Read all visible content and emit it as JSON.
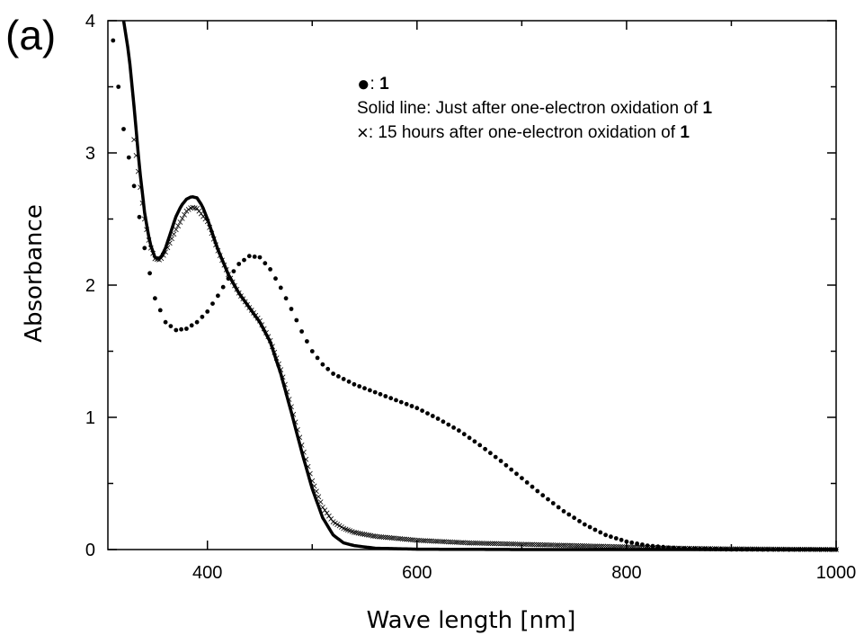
{
  "panel_label": "(a)",
  "chart_data": {
    "type": "line",
    "xlabel": "Wave length [nm]",
    "ylabel": "Absorbance",
    "xlim": [
      305,
      1000
    ],
    "ylim": [
      0,
      4
    ],
    "x_ticks": [
      400,
      600,
      800,
      1000
    ],
    "y_ticks": [
      0,
      1,
      2,
      3,
      4
    ],
    "grid": false,
    "legend": {
      "placement": "top-center",
      "entries": [
        {
          "symbol": "●",
          "sep": ": ",
          "text": "",
          "bold": "1"
        },
        {
          "symbol": "",
          "sep": "",
          "text": "Solid line: Just after one-electron oxidation of ",
          "bold": "1"
        },
        {
          "symbol": "×",
          "sep": ": ",
          "text": "15 hours after one-electron oxidation of ",
          "bold": "1"
        }
      ]
    },
    "series": [
      {
        "key": "compound_1",
        "style": "dots",
        "points": [
          [
            310,
            3.85
          ],
          [
            315,
            3.5
          ],
          [
            320,
            3.18
          ],
          [
            330,
            2.75
          ],
          [
            340,
            2.28
          ],
          [
            350,
            1.9
          ],
          [
            360,
            1.72
          ],
          [
            370,
            1.66
          ],
          [
            380,
            1.67
          ],
          [
            390,
            1.72
          ],
          [
            400,
            1.8
          ],
          [
            410,
            1.92
          ],
          [
            420,
            2.05
          ],
          [
            430,
            2.16
          ],
          [
            440,
            2.22
          ],
          [
            450,
            2.21
          ],
          [
            460,
            2.12
          ],
          [
            470,
            1.98
          ],
          [
            480,
            1.82
          ],
          [
            490,
            1.65
          ],
          [
            500,
            1.5
          ],
          [
            510,
            1.4
          ],
          [
            520,
            1.33
          ],
          [
            530,
            1.29
          ],
          [
            540,
            1.25
          ],
          [
            550,
            1.22
          ],
          [
            560,
            1.19
          ],
          [
            570,
            1.16
          ],
          [
            580,
            1.13
          ],
          [
            590,
            1.1
          ],
          [
            600,
            1.07
          ],
          [
            620,
            0.99
          ],
          [
            640,
            0.9
          ],
          [
            660,
            0.79
          ],
          [
            680,
            0.67
          ],
          [
            700,
            0.54
          ],
          [
            720,
            0.41
          ],
          [
            740,
            0.29
          ],
          [
            760,
            0.19
          ],
          [
            780,
            0.11
          ],
          [
            800,
            0.06
          ],
          [
            820,
            0.03
          ],
          [
            840,
            0.015
          ],
          [
            860,
            0.006
          ],
          [
            880,
            0.003
          ],
          [
            900,
            0.001
          ],
          [
            940,
            0
          ],
          [
            1000,
            0
          ]
        ]
      },
      {
        "key": "just_after_oxidation",
        "style": "solid",
        "points": [
          [
            320,
            4.0
          ],
          [
            325,
            3.75
          ],
          [
            330,
            3.35
          ],
          [
            335,
            2.9
          ],
          [
            340,
            2.55
          ],
          [
            345,
            2.32
          ],
          [
            350,
            2.21
          ],
          [
            355,
            2.2
          ],
          [
            360,
            2.28
          ],
          [
            365,
            2.4
          ],
          [
            370,
            2.52
          ],
          [
            375,
            2.6
          ],
          [
            380,
            2.65
          ],
          [
            385,
            2.67
          ],
          [
            390,
            2.66
          ],
          [
            395,
            2.6
          ],
          [
            400,
            2.5
          ],
          [
            410,
            2.27
          ],
          [
            420,
            2.08
          ],
          [
            430,
            1.94
          ],
          [
            440,
            1.83
          ],
          [
            450,
            1.72
          ],
          [
            460,
            1.57
          ],
          [
            470,
            1.33
          ],
          [
            480,
            1.04
          ],
          [
            490,
            0.74
          ],
          [
            500,
            0.46
          ],
          [
            510,
            0.24
          ],
          [
            520,
            0.11
          ],
          [
            530,
            0.05
          ],
          [
            540,
            0.03
          ],
          [
            560,
            0.01
          ],
          [
            600,
            0.003
          ],
          [
            700,
            0
          ],
          [
            1000,
            0
          ]
        ]
      },
      {
        "key": "15_hours_after",
        "style": "cross",
        "points": [
          [
            330,
            3.1
          ],
          [
            340,
            2.5
          ],
          [
            345,
            2.3
          ],
          [
            350,
            2.2
          ],
          [
            355,
            2.19
          ],
          [
            360,
            2.25
          ],
          [
            370,
            2.42
          ],
          [
            380,
            2.56
          ],
          [
            385,
            2.59
          ],
          [
            390,
            2.58
          ],
          [
            400,
            2.48
          ],
          [
            410,
            2.26
          ],
          [
            420,
            2.08
          ],
          [
            430,
            1.94
          ],
          [
            440,
            1.83
          ],
          [
            450,
            1.73
          ],
          [
            460,
            1.58
          ],
          [
            470,
            1.36
          ],
          [
            480,
            1.08
          ],
          [
            490,
            0.79
          ],
          [
            500,
            0.52
          ],
          [
            510,
            0.32
          ],
          [
            520,
            0.21
          ],
          [
            530,
            0.16
          ],
          [
            540,
            0.13
          ],
          [
            560,
            0.1
          ],
          [
            600,
            0.07
          ],
          [
            650,
            0.05
          ],
          [
            700,
            0.04
          ],
          [
            750,
            0.03
          ],
          [
            800,
            0.02
          ],
          [
            850,
            0.01
          ],
          [
            900,
            0.005
          ],
          [
            1000,
            0
          ]
        ]
      }
    ]
  }
}
